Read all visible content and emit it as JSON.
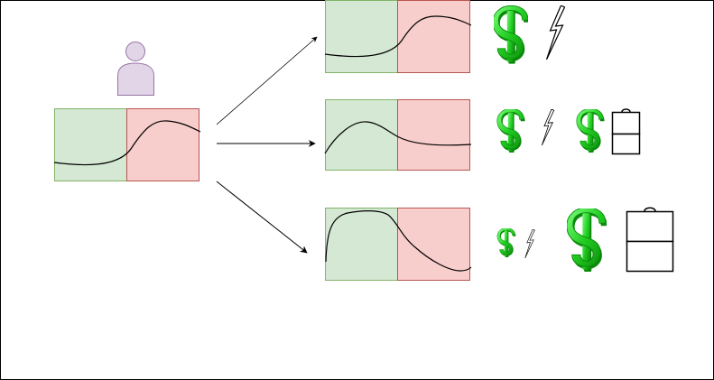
{
  "diagram": {
    "background": "#ffffff",
    "border_color": "#000000",
    "colors": {
      "green_fill": "#d5e8d4",
      "green_stroke": "#82b366",
      "red_fill": "#f8cecc",
      "red_stroke": "#b85450",
      "person_fill": "#e1d5e7",
      "person_stroke": "#9673a6",
      "dollar_light": "#66ff66",
      "dollar_mid": "#22cc22",
      "dollar_dark": "#0a8a0a",
      "curve": "#000000",
      "arrow": "#000000"
    },
    "nodes": [
      {
        "id": "user",
        "icon": "person-icon"
      },
      {
        "id": "source-chart",
        "icon": "chart-panel"
      },
      {
        "id": "outcome-1",
        "icon": "chart-panel",
        "resources": [
          "dollar-icon",
          "lightning-icon"
        ]
      },
      {
        "id": "outcome-2",
        "icon": "chart-panel",
        "resources": [
          "dollar-icon",
          "lightning-icon",
          "dollar-icon",
          "battery-icon"
        ]
      },
      {
        "id": "outcome-3",
        "icon": "chart-panel",
        "resources": [
          "dollar-icon",
          "lightning-icon",
          "dollar-icon",
          "battery-icon"
        ]
      }
    ],
    "edges": [
      {
        "from": "source-chart",
        "to": "outcome-1"
      },
      {
        "from": "source-chart",
        "to": "outcome-2"
      },
      {
        "from": "source-chart",
        "to": "outcome-3"
      }
    ]
  }
}
